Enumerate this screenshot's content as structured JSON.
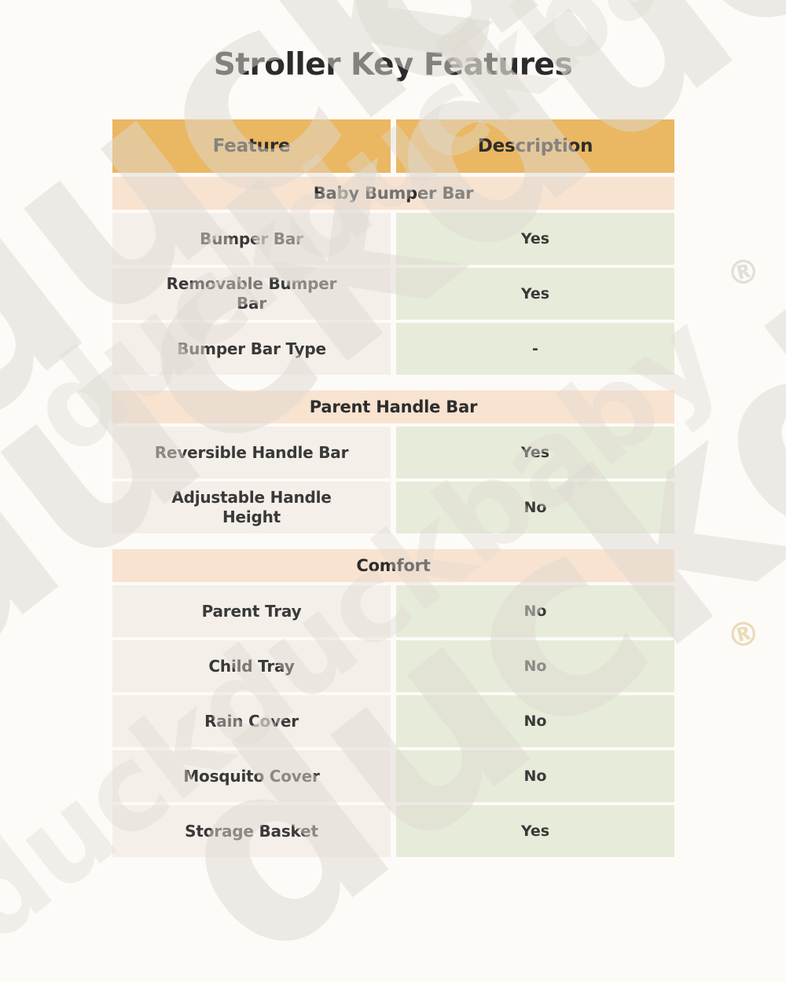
{
  "page": {
    "title": "Stroller Key Features"
  },
  "table": {
    "headers": {
      "feature": "Feature",
      "description": "Description"
    },
    "sections": [
      {
        "title": "Baby Bumper Bar",
        "rows": [
          [
            "Bumper Bar",
            "Yes"
          ],
          [
            "Removable Bumper\nBar",
            "Yes"
          ],
          [
            "Bumper Bar Type",
            "-"
          ]
        ]
      },
      {
        "title": "Parent Handle Bar",
        "rows": [
          [
            "Reversible Handle Bar",
            "Yes"
          ],
          [
            "Adjustable Handle\nHeight",
            "No"
          ]
        ]
      },
      {
        "title": "Comfort",
        "rows": [
          [
            "Parent Tray",
            "No"
          ],
          [
            "Child Tray",
            "No"
          ],
          [
            "Rain Cover",
            "No"
          ],
          [
            "Mosquito Cover",
            "No"
          ],
          [
            "Storage Basket",
            "Yes"
          ]
        ]
      }
    ]
  },
  "watermark": {
    "text": "duckduckbaby",
    "registered": "®"
  },
  "colors": {
    "header_orange": "#eab763",
    "section_peach": "#f8e3d1",
    "feature_beige": "#f4efe9",
    "description_green": "#e7ebd9",
    "page_background": "#fdfbf8",
    "text_dark": "#2d2d2d"
  }
}
